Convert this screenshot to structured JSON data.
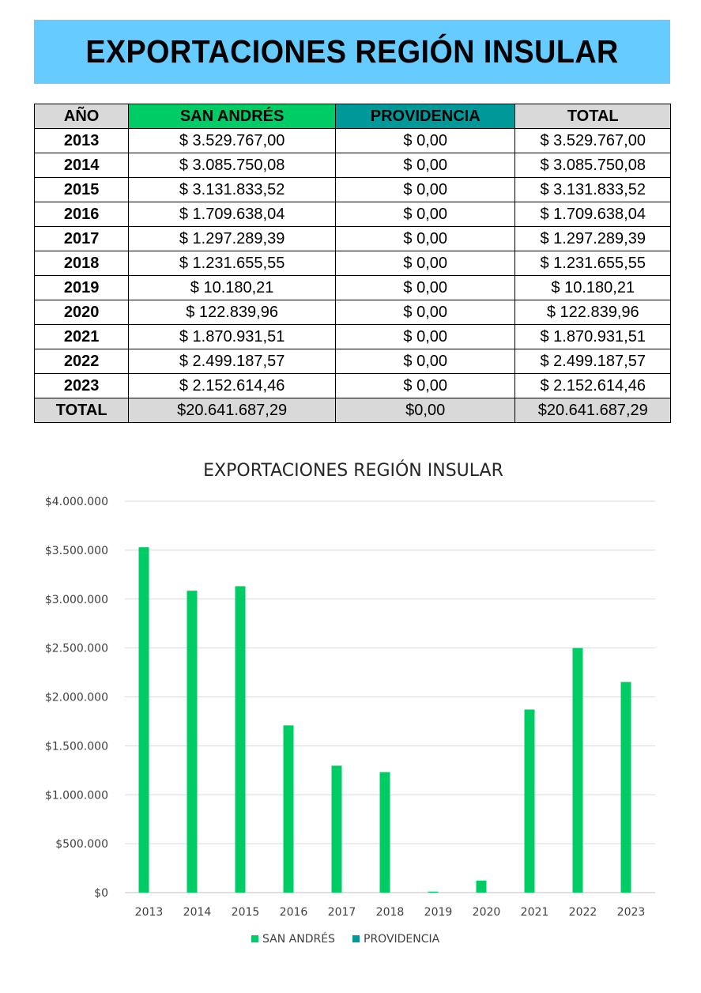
{
  "header": {
    "title": "EXPORTACIONES REGIÓN INSULAR"
  },
  "table": {
    "columns": [
      "AÑO",
      "SAN ANDRÉS",
      "PROVIDENCIA",
      "TOTAL"
    ],
    "rows": [
      [
        "2013",
        "$ 3.529.767,00",
        "$ 0,00",
        "$ 3.529.767,00"
      ],
      [
        "2014",
        "$ 3.085.750,08",
        "$ 0,00",
        "$ 3.085.750,08"
      ],
      [
        "2015",
        "$ 3.131.833,52",
        "$ 0,00",
        "$ 3.131.833,52"
      ],
      [
        "2016",
        "$ 1.709.638,04",
        "$ 0,00",
        "$ 1.709.638,04"
      ],
      [
        "2017",
        "$ 1.297.289,39",
        "$ 0,00",
        "$ 1.297.289,39"
      ],
      [
        "2018",
        "$ 1.231.655,55",
        "$ 0,00",
        "$ 1.231.655,55"
      ],
      [
        "2019",
        "$ 10.180,21",
        "$ 0,00",
        "$ 10.180,21"
      ],
      [
        "2020",
        "$ 122.839,96",
        "$ 0,00",
        "$ 122.839,96"
      ],
      [
        "2021",
        "$ 1.870.931,51",
        "$ 0,00",
        "$ 1.870.931,51"
      ],
      [
        "2022",
        "$ 2.499.187,57",
        "$ 0,00",
        "$ 2.499.187,57"
      ],
      [
        "2023",
        "$ 2.152.614,46",
        "$ 0,00",
        "$ 2.152.614,46"
      ]
    ],
    "total_row": [
      "TOTAL",
      "$20.641.687,29",
      "$0,00",
      "$20.641.687,29"
    ],
    "colors": {
      "san_andres": "#00cc66",
      "providencia": "#009999",
      "grey": "#d9d9d9"
    }
  },
  "chart_data": {
    "type": "bar",
    "title": "EXPORTACIONES REGIÓN INSULAR",
    "categories": [
      "2013",
      "2014",
      "2015",
      "2016",
      "2017",
      "2018",
      "2019",
      "2020",
      "2021",
      "2022",
      "2023"
    ],
    "series": [
      {
        "name": "SAN ANDRÉS",
        "color": "#00cc66",
        "values": [
          3529767.0,
          3085750.08,
          3131833.52,
          1709638.04,
          1297289.39,
          1231655.55,
          10180.21,
          122839.96,
          1870931.51,
          2499187.57,
          2152614.46
        ]
      },
      {
        "name": "PROVIDENCIA",
        "color": "#009999",
        "values": [
          0,
          0,
          0,
          0,
          0,
          0,
          0,
          0,
          0,
          0,
          0
        ]
      }
    ],
    "ylim": [
      0,
      4000000
    ],
    "yticks": [
      0,
      500000,
      1000000,
      1500000,
      2000000,
      2500000,
      3000000,
      3500000,
      4000000
    ],
    "ytick_labels": [
      "$0",
      "$500.000",
      "$1.000.000",
      "$1.500.000",
      "$2.000.000",
      "$2.500.000",
      "$3.000.000",
      "$3.500.000",
      "$4.000.000"
    ],
    "grid": true,
    "legend_position": "bottom"
  }
}
